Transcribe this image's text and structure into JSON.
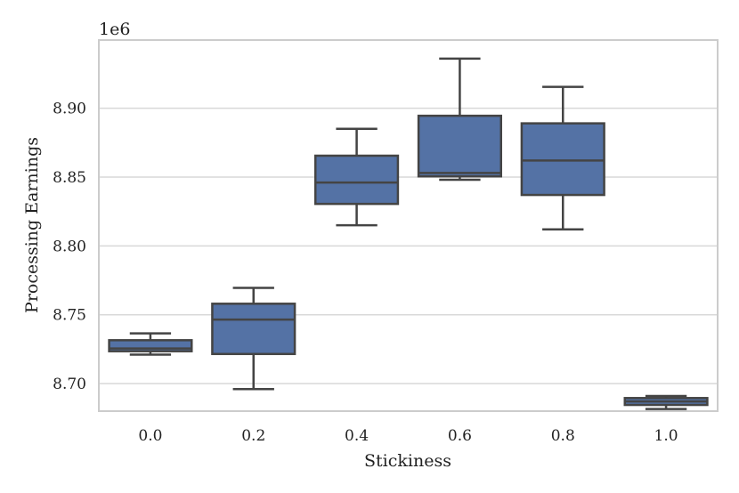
{
  "chart_data": {
    "type": "box",
    "title": "",
    "xlabel": "Stickiness",
    "ylabel": "Processing Earnings",
    "y_scale_label": "1e6",
    "ylim": [
      8.68,
      8.9495
    ],
    "y_ticks": [
      8.7,
      8.75,
      8.8,
      8.85,
      8.9
    ],
    "y_tick_labels": [
      "8.70",
      "8.75",
      "8.80",
      "8.85",
      "8.90"
    ],
    "grid": true,
    "categories": [
      "0.0",
      "0.2",
      "0.4",
      "0.6",
      "0.8",
      "1.0"
    ],
    "boxes": [
      {
        "category": "0.0",
        "whisker_low": 8.721,
        "q1": 8.7235,
        "median": 8.7255,
        "q3": 8.7315,
        "whisker_high": 8.7365
      },
      {
        "category": "0.2",
        "whisker_low": 8.696,
        "q1": 8.7215,
        "median": 8.7465,
        "q3": 8.758,
        "whisker_high": 8.7695
      },
      {
        "category": "0.4",
        "whisker_low": 8.815,
        "q1": 8.8305,
        "median": 8.846,
        "q3": 8.8655,
        "whisker_high": 8.885
      },
      {
        "category": "0.6",
        "whisker_low": 8.848,
        "q1": 8.8505,
        "median": 8.853,
        "q3": 8.8945,
        "whisker_high": 8.936
      },
      {
        "category": "0.8",
        "whisker_low": 8.812,
        "q1": 8.837,
        "median": 8.862,
        "q3": 8.889,
        "whisker_high": 8.9155
      },
      {
        "category": "1.0",
        "whisker_low": 8.6815,
        "q1": 8.6845,
        "median": 8.687,
        "q3": 8.6895,
        "whisker_high": 8.691
      }
    ],
    "colors": {
      "box_fill": "#5472a5",
      "box_edge": "#444444",
      "grid": "#d9d9d9",
      "frame": "#cccccc"
    }
  }
}
